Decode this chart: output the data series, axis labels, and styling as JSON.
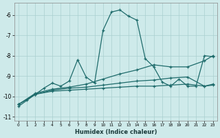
{
  "xlabel": "Humidex (Indice chaleur)",
  "background_color": "#ceeaea",
  "grid_color": "#aacfcf",
  "line_color": "#1e6b6b",
  "xlim": [
    -0.5,
    23.5
  ],
  "ylim": [
    -11.2,
    -5.4
  ],
  "yticks": [
    -11,
    -10,
    -9,
    -8,
    -7,
    -6
  ],
  "xtick_labels": [
    "0",
    "1",
    "2",
    "3",
    "4",
    "5",
    "6",
    "7",
    "8",
    "9",
    "10",
    "11",
    "12",
    "13",
    "14",
    "15",
    "16",
    "17",
    "18",
    "19",
    "20",
    "21",
    "22",
    "23"
  ],
  "line1_x": [
    0,
    1,
    2,
    3,
    4,
    5,
    6,
    7,
    8,
    9,
    10,
    11,
    12,
    13,
    14,
    15,
    16,
    17,
    18,
    19,
    20,
    21,
    22,
    23
  ],
  "line1_y": [
    -10.5,
    -10.2,
    -9.9,
    -9.6,
    -9.35,
    -9.5,
    -9.25,
    -8.2,
    -9.05,
    -9.35,
    -6.75,
    -5.85,
    -5.75,
    -6.05,
    -6.25,
    -8.15,
    -8.55,
    -9.3,
    -9.5,
    -9.15,
    -9.5,
    -9.5,
    -8.0,
    -8.05
  ],
  "line2_x": [
    0,
    2,
    4,
    6,
    8,
    10,
    12,
    14,
    16,
    18,
    20,
    22,
    23
  ],
  "line2_y": [
    -10.4,
    -9.85,
    -9.65,
    -9.55,
    -9.4,
    -9.15,
    -8.9,
    -8.7,
    -8.45,
    -8.55,
    -8.55,
    -8.25,
    -8.0
  ],
  "line3_x": [
    0,
    2,
    4,
    6,
    8,
    10,
    12,
    14,
    16,
    18,
    20,
    22,
    23
  ],
  "line3_y": [
    -10.4,
    -9.9,
    -9.7,
    -9.6,
    -9.55,
    -9.45,
    -9.35,
    -9.25,
    -9.2,
    -9.1,
    -9.05,
    -9.5,
    -9.4
  ],
  "line4_x": [
    0,
    2,
    4,
    6,
    8,
    10,
    12,
    14,
    16,
    18,
    20,
    22,
    23
  ],
  "line4_y": [
    -10.4,
    -9.9,
    -9.75,
    -9.7,
    -9.65,
    -9.6,
    -9.55,
    -9.5,
    -9.5,
    -9.45,
    -9.4,
    -9.5,
    -9.45
  ]
}
